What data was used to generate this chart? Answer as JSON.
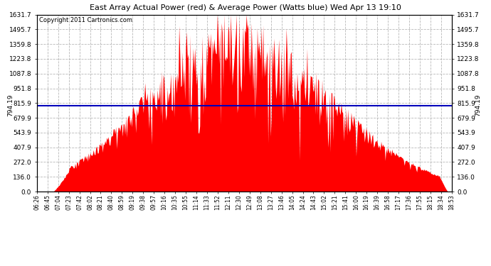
{
  "title": "East Array Actual Power (red) & Average Power (Watts blue) Wed Apr 13 19:10",
  "copyright": "Copyright 2011 Cartronics.com",
  "average_power": 794.19,
  "y_max": 1631.7,
  "y_ticks": [
    0.0,
    136.0,
    272.0,
    407.9,
    543.9,
    679.9,
    815.9,
    951.8,
    1087.8,
    1223.8,
    1359.8,
    1495.7,
    1631.7
  ],
  "background_color": "#ffffff",
  "plot_bg_color": "#ffffff",
  "grid_color": "#b0b0b0",
  "fill_color": "#ff0000",
  "avg_line_color": "#0000bb",
  "x_labels": [
    "06:26",
    "06:45",
    "07:04",
    "07:23",
    "07:42",
    "08:02",
    "08:21",
    "08:40",
    "08:59",
    "09:19",
    "09:38",
    "09:57",
    "10:16",
    "10:35",
    "10:55",
    "11:14",
    "11:33",
    "11:52",
    "12:11",
    "12:30",
    "12:49",
    "13:08",
    "13:27",
    "13:46",
    "14:05",
    "14:24",
    "14:43",
    "15:02",
    "15:21",
    "15:41",
    "16:00",
    "16:19",
    "16:39",
    "16:58",
    "17:17",
    "17:36",
    "17:55",
    "18:15",
    "18:34",
    "18:53"
  ],
  "num_points": 500,
  "avg_label": "794.19"
}
